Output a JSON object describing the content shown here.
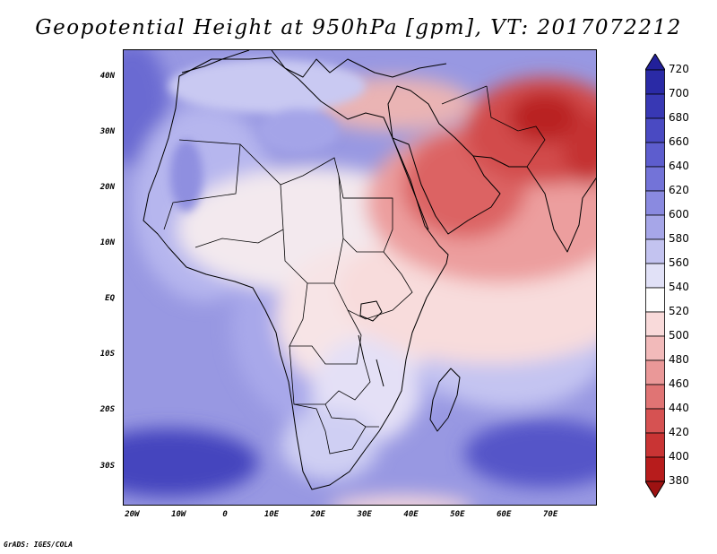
{
  "title": "Geopotential Height at 950hPa [gpm], VT: 2017072212",
  "credit": "GrADS: IGES/COLA",
  "map": {
    "lon_range": [
      -22,
      80
    ],
    "lat_range": [
      -37,
      45
    ],
    "lat_ticks": [
      {
        "value": 40,
        "label": "40N"
      },
      {
        "value": 30,
        "label": "30N"
      },
      {
        "value": 20,
        "label": "20N"
      },
      {
        "value": 10,
        "label": "10N"
      },
      {
        "value": 0,
        "label": "EQ"
      },
      {
        "value": -10,
        "label": "10S"
      },
      {
        "value": -20,
        "label": "20S"
      },
      {
        "value": -30,
        "label": "30S"
      }
    ],
    "lon_ticks": [
      {
        "value": -20,
        "label": "20W"
      },
      {
        "value": -10,
        "label": "10W"
      },
      {
        "value": 0,
        "label": "0"
      },
      {
        "value": 10,
        "label": "10E"
      },
      {
        "value": 20,
        "label": "20E"
      },
      {
        "value": 30,
        "label": "30E"
      },
      {
        "value": 40,
        "label": "40E"
      },
      {
        "value": 50,
        "label": "50E"
      },
      {
        "value": 60,
        "label": "60E"
      },
      {
        "value": 70,
        "label": "70E"
      }
    ]
  },
  "colorbar": {
    "levels": [
      "720",
      "700",
      "680",
      "660",
      "640",
      "620",
      "600",
      "580",
      "560",
      "540",
      "520",
      "500",
      "480",
      "460",
      "440",
      "420",
      "400",
      "380"
    ],
    "colors": [
      "#22209a",
      "#2a2aa6",
      "#3838b4",
      "#4a4ac2",
      "#5d5dce",
      "#7373d8",
      "#8a8ae0",
      "#a6a6e8",
      "#c3c3f0",
      "#e1e1f7",
      "#ffffff",
      "#f9dada",
      "#f2baba",
      "#ea9898",
      "#e07474",
      "#d65252",
      "#c93434",
      "#b71c1c",
      "#9e1212"
    ]
  }
}
